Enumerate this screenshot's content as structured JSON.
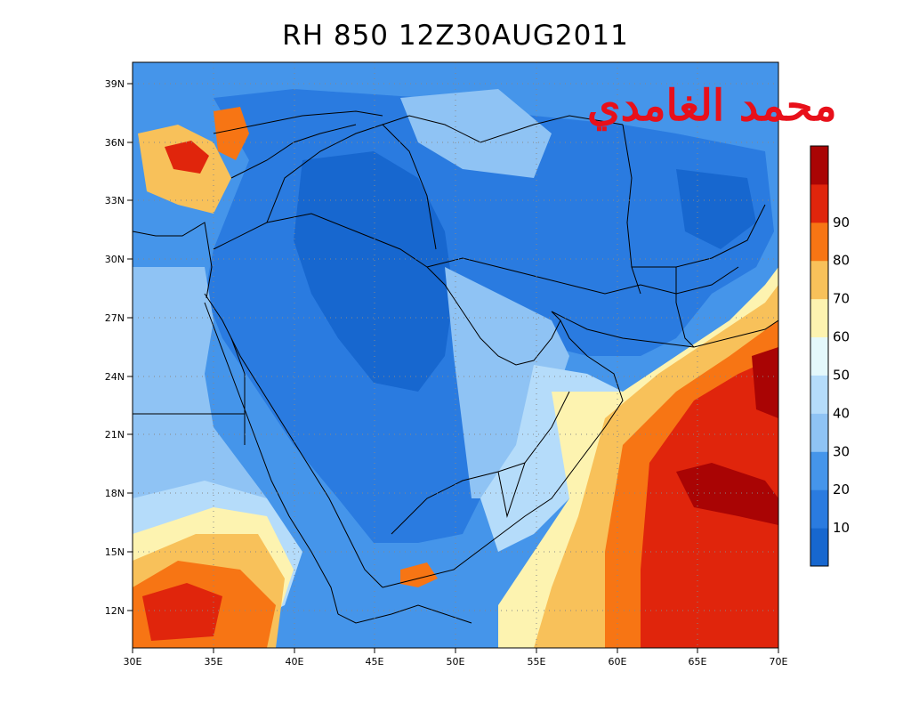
{
  "title": "RH 850 12Z30AUG2011",
  "watermark": "محمد الغامدي",
  "lon_ticks": [
    "30E",
    "35E",
    "40E",
    "45E",
    "50E",
    "55E",
    "60E",
    "65E",
    "70E"
  ],
  "lat_ticks": [
    "12N",
    "15N",
    "18N",
    "21N",
    "24N",
    "27N",
    "30N",
    "33N",
    "36N",
    "39N"
  ],
  "colorbar": {
    "labels": [
      "10",
      "20",
      "30",
      "40",
      "50",
      "60",
      "70",
      "80",
      "90"
    ],
    "colors": [
      "#1767cf",
      "#2a7be0",
      "#4595ea",
      "#8fc3f4",
      "#b5dcfa",
      "#e4f8fb",
      "#fdf3b0",
      "#f8c15a",
      "#f77514",
      "#e0250c",
      "#a90404"
    ]
  },
  "map": {
    "lon_range": [
      30,
      70
    ],
    "lat_range": [
      10,
      40
    ],
    "variable": "RH",
    "level": "850"
  }
}
